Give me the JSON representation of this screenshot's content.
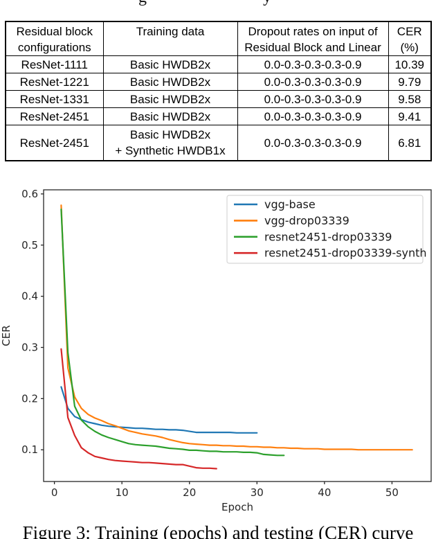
{
  "top_remnant": {
    "glyph1": "g",
    "glyph2": "y"
  },
  "table": {
    "columns": [
      {
        "header_lines": [
          "Residual block",
          "configurations"
        ]
      },
      {
        "header_lines": [
          "Training data"
        ]
      },
      {
        "header_lines": [
          "Dropout rates on input of",
          "Residual Block and Linear"
        ]
      },
      {
        "header_lines": [
          "CER",
          "(%)"
        ]
      }
    ],
    "rows": [
      {
        "cells": [
          [
            "ResNet-1111"
          ],
          [
            "Basic HWDB2x"
          ],
          [
            "0.0-0.3-0.3-0.3-0.9"
          ],
          [
            "10.39"
          ]
        ],
        "bold_last": false
      },
      {
        "cells": [
          [
            "ResNet-1221"
          ],
          [
            "Basic HWDB2x"
          ],
          [
            "0.0-0.3-0.3-0.3-0.9"
          ],
          [
            "9.79"
          ]
        ],
        "bold_last": false
      },
      {
        "cells": [
          [
            "ResNet-1331"
          ],
          [
            "Basic HWDB2x"
          ],
          [
            "0.0-0.3-0.3-0.3-0.9"
          ],
          [
            "9.58"
          ]
        ],
        "bold_last": false
      },
      {
        "cells": [
          [
            "ResNet-2451"
          ],
          [
            "Basic HWDB2x"
          ],
          [
            "0.0-0.3-0.3-0.3-0.9"
          ],
          [
            "9.41"
          ]
        ],
        "bold_last": false
      },
      {
        "cells": [
          [
            "ResNet-2451"
          ],
          [
            "Basic HWDB2x",
            "+ Synthetic HWDB1x"
          ],
          [
            "0.0-0.3-0.3-0.3-0.9"
          ],
          [
            "6.81"
          ]
        ],
        "bold_last": true
      }
    ]
  },
  "chart_data": {
    "type": "line",
    "title": "",
    "xlabel": "Epoch",
    "ylabel": "CER",
    "xlim": [
      -1.6,
      55.8
    ],
    "ylim": [
      0.038,
      0.608
    ],
    "x_ticks": [
      0,
      10,
      20,
      30,
      40,
      50
    ],
    "y_ticks": [
      0.1,
      0.2,
      0.3,
      0.4,
      0.5,
      0.6
    ],
    "grid": false,
    "legend_position": "upper right",
    "axis_color": "#262626",
    "series": [
      {
        "name": "vgg-base",
        "color": "#1f77b4",
        "x_start": 1,
        "values": [
          0.223,
          0.181,
          0.165,
          0.159,
          0.154,
          0.151,
          0.148,
          0.146,
          0.145,
          0.144,
          0.143,
          0.142,
          0.142,
          0.141,
          0.14,
          0.14,
          0.139,
          0.139,
          0.138,
          0.136,
          0.134,
          0.134,
          0.134,
          0.134,
          0.134,
          0.134,
          0.133,
          0.133,
          0.133,
          0.133
        ]
      },
      {
        "name": "vgg-drop03339",
        "color": "#ff7f0e",
        "x_start": 1,
        "values": [
          0.578,
          0.26,
          0.203,
          0.181,
          0.169,
          0.162,
          0.157,
          0.151,
          0.147,
          0.142,
          0.137,
          0.134,
          0.131,
          0.129,
          0.127,
          0.124,
          0.12,
          0.117,
          0.114,
          0.112,
          0.111,
          0.11,
          0.109,
          0.109,
          0.108,
          0.108,
          0.107,
          0.107,
          0.106,
          0.106,
          0.105,
          0.105,
          0.104,
          0.104,
          0.103,
          0.103,
          0.102,
          0.102,
          0.102,
          0.101,
          0.101,
          0.101,
          0.101,
          0.101,
          0.1,
          0.1,
          0.1,
          0.1,
          0.1,
          0.1,
          0.1,
          0.1,
          0.1
        ]
      },
      {
        "name": "resnet2451-drop03339",
        "color": "#2ca02c",
        "x_start": 1,
        "values": [
          0.57,
          0.29,
          0.185,
          0.158,
          0.145,
          0.136,
          0.129,
          0.124,
          0.12,
          0.116,
          0.112,
          0.11,
          0.109,
          0.108,
          0.107,
          0.105,
          0.103,
          0.102,
          0.101,
          0.099,
          0.099,
          0.098,
          0.097,
          0.097,
          0.096,
          0.096,
          0.096,
          0.095,
          0.095,
          0.094,
          0.091,
          0.09,
          0.089,
          0.089
        ]
      },
      {
        "name": "resnet2451-drop03339-synth",
        "color": "#d62728",
        "x_start": 1,
        "values": [
          0.297,
          0.163,
          0.128,
          0.104,
          0.094,
          0.087,
          0.084,
          0.081,
          0.079,
          0.078,
          0.077,
          0.076,
          0.075,
          0.075,
          0.074,
          0.073,
          0.072,
          0.071,
          0.071,
          0.068,
          0.065,
          0.064,
          0.064,
          0.063
        ]
      }
    ]
  },
  "caption": "Figure 3: Training (epochs) and testing (CER) curve"
}
